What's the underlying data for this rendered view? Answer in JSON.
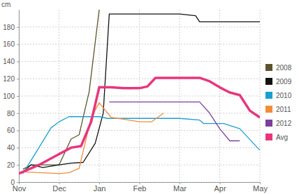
{
  "chart_data": {
    "type": "line",
    "y_label": "cm",
    "xlim": [
      0,
      6
    ],
    "xticks": [
      {
        "value": 0,
        "label": "Nov"
      },
      {
        "value": 1,
        "label": "Dec"
      },
      {
        "value": 2,
        "label": "Jan"
      },
      {
        "value": 3,
        "label": "Feb"
      },
      {
        "value": 4,
        "label": "Mar"
      },
      {
        "value": 5,
        "label": "Apr"
      },
      {
        "value": 6,
        "label": "May"
      }
    ],
    "ylim": [
      0,
      200
    ],
    "yticks": [
      0,
      20,
      40,
      60,
      80,
      100,
      120,
      140,
      160,
      180
    ],
    "grid": true,
    "legend": "right",
    "series": [
      {
        "name": "2008",
        "color": "#5c5430",
        "x": [
          0.1,
          0.3,
          1.0,
          1.3,
          1.5,
          1.75,
          2.0
        ],
        "values": [
          15,
          20,
          20,
          50,
          55,
          105,
          200
        ]
      },
      {
        "name": "2009",
        "color": "#111111",
        "x": [
          0.1,
          0.3,
          0.6,
          1.0,
          1.3,
          1.6,
          1.9,
          2.1,
          2.25,
          4.0,
          4.4,
          4.5,
          6.0
        ],
        "values": [
          12,
          20,
          17,
          20,
          22,
          23,
          45,
          80,
          195,
          195,
          193,
          186,
          186
        ]
      },
      {
        "name": "2010",
        "color": "#1a9fd0",
        "x": [
          0.1,
          0.5,
          0.8,
          1.0,
          1.25,
          2.0,
          2.2,
          4.0,
          4.5,
          4.6,
          5.1,
          5.5,
          6.0
        ],
        "values": [
          10,
          40,
          63,
          70,
          76,
          76,
          74,
          74,
          72,
          68,
          68,
          62,
          37
        ]
      },
      {
        "name": "2011",
        "color": "#f28c38",
        "x": [
          0.1,
          1.0,
          1.25,
          1.5,
          1.8,
          2.0,
          2.3,
          2.6,
          3.0,
          3.3,
          3.6
        ],
        "values": [
          12,
          10,
          11,
          16,
          75,
          92,
          75,
          73,
          70,
          70,
          80
        ]
      },
      {
        "name": "2012",
        "color": "#7b3fa0",
        "x": [
          2.25,
          4.5,
          4.75,
          5.0,
          5.25,
          5.5
        ],
        "values": [
          93,
          93,
          80,
          62,
          48,
          48
        ]
      },
      {
        "name": "Avg",
        "color": "#e8367c",
        "line_style": "thick",
        "x": [
          0.0,
          0.5,
          0.9,
          1.3,
          1.55,
          1.8,
          2.0,
          2.3,
          2.6,
          3.0,
          3.2,
          3.4,
          4.0,
          4.5,
          4.75,
          5.0,
          5.25,
          5.5,
          5.75,
          6.0
        ],
        "values": [
          10,
          20,
          30,
          40,
          42,
          70,
          110,
          110,
          109,
          109,
          111,
          121,
          121,
          121,
          117,
          110,
          104,
          101,
          83,
          75
        ]
      }
    ]
  }
}
